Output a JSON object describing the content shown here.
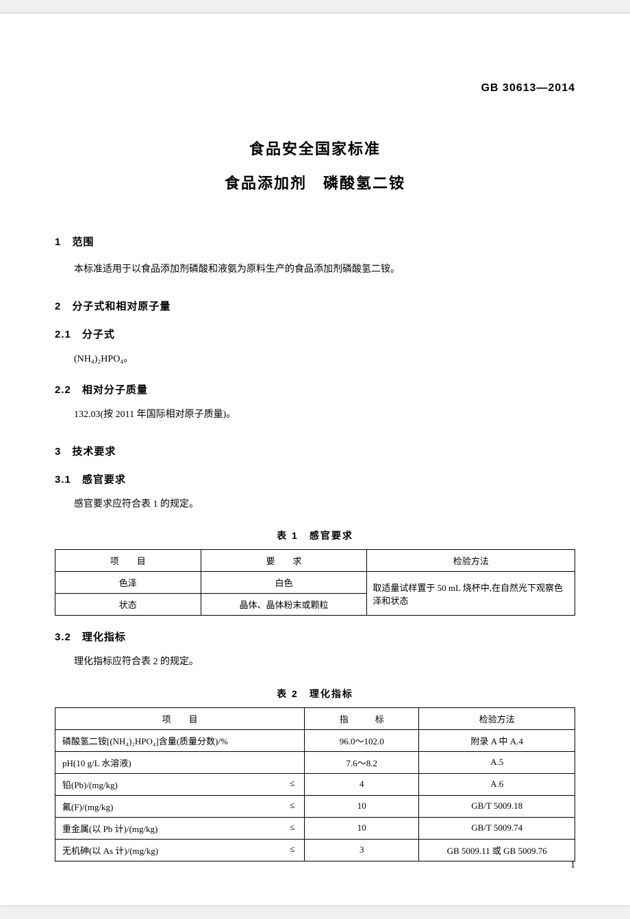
{
  "header_code": "GB 30613—2014",
  "title_line1": "食品安全国家标准",
  "title_line2_a": "食品添加剂",
  "title_line2_b": "磷酸氢二铵",
  "sec1_heading": "1　范围",
  "sec1_body": "本标准适用于以食品添加剂磷酸和液氨为原料生产的食品添加剂磷酸氢二铵。",
  "sec2_heading": "2　分子式和相对原子量",
  "sec2_1_heading": "2.1　分子式",
  "sec2_1_body": "(NH₄)₂HPO₄。",
  "sec2_2_heading": "2.2　相对分子质量",
  "sec2_2_body": "132.03(按 2011 年国际相对原子质量)。",
  "sec3_heading": "3　技术要求",
  "sec3_1_heading": "3.1　感官要求",
  "sec3_1_body": "感官要求应符合表 1 的规定。",
  "table1_caption": "表 1　感官要求",
  "table1": {
    "header": [
      "项　　目",
      "要　　求",
      "检验方法"
    ],
    "rows": [
      {
        "item": "色泽",
        "req": "白色"
      },
      {
        "item": "状态",
        "req": "晶体、晶体粉末或颗粒"
      }
    ],
    "method": "取适量试样置于 50 mL 烧杯中,在自然光下观察色泽和状态"
  },
  "sec3_2_heading": "3.2　理化指标",
  "sec3_2_body": "理化指标应符合表 2 的规定。",
  "table2_caption": "表 2　理化指标",
  "table2": {
    "header": [
      "项　　目",
      "指　　　标",
      "检验方法"
    ],
    "rows": [
      {
        "item": "磷酸氢二铵[(NH₄)₂HPO₄]含量(质量分数)/%",
        "leq": "",
        "value": "96.0～102.0",
        "method": "附录 A 中 A.4"
      },
      {
        "item": "pH(10 g/L 水溶液)",
        "leq": "",
        "value": "7.6～8.2",
        "method": "A.5"
      },
      {
        "item": "铅(Pb)/(mg/kg)",
        "leq": "≤",
        "value": "4",
        "method": "A.6"
      },
      {
        "item": "氟(F)/(mg/kg)",
        "leq": "≤",
        "value": "10",
        "method": "GB/T 5009.18"
      },
      {
        "item": "重金属(以 Pb 计)/(mg/kg)",
        "leq": "≤",
        "value": "10",
        "method": "GB/T 5009.74"
      },
      {
        "item": "无机砷(以 As 计)/(mg/kg)",
        "leq": "≤",
        "value": "3",
        "method": "GB 5009.11 或 GB 5009.76"
      }
    ]
  },
  "page_number": "1"
}
